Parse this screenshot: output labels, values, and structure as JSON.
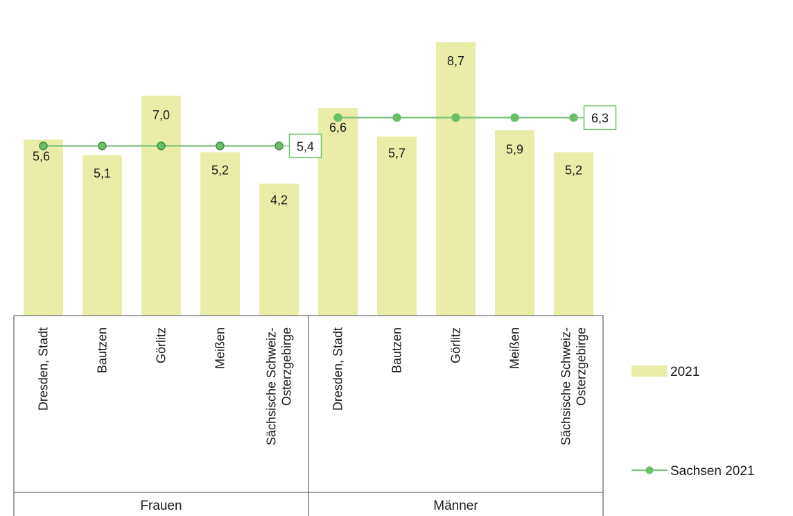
{
  "chart_data": {
    "type": "bar",
    "groups": [
      {
        "name": "Frauen",
        "categories": [
          "Dresden, Stadt",
          "Bautzen",
          "Görlitz",
          "Meißen",
          "Sächsische Schweiz-\nOsterzgebirge"
        ],
        "bar_values": [
          5.6,
          5.1,
          7.0,
          5.2,
          4.2
        ],
        "line_value": 5.4
      },
      {
        "name": "Männer",
        "categories": [
          "Dresden, Stadt",
          "Bautzen",
          "Görlitz",
          "Meißen",
          "Sächsische Schweiz-\nOsterzgebirge"
        ],
        "bar_values": [
          6.6,
          5.7,
          8.7,
          5.9,
          5.2
        ],
        "line_value": 6.3
      }
    ],
    "bar_value_labels": [
      [
        "5,6",
        "5,1",
        "7,0",
        "5,2",
        "4,2"
      ],
      [
        "6,6",
        "5,7",
        "8,7",
        "5,9",
        "5,2"
      ]
    ],
    "line_value_labels": [
      "5,4",
      "6,3"
    ],
    "series": [
      {
        "name": "2021",
        "type": "bar",
        "color": "#eaeda8"
      },
      {
        "name": "Sachsen 2021",
        "type": "line",
        "color": "#6abf69",
        "line_color": "#7dc27a",
        "marker_edge_fr": "#3f8a40"
      }
    ],
    "ylim": [
      0,
      9.5
    ],
    "grid": false,
    "legend_position": "right"
  }
}
